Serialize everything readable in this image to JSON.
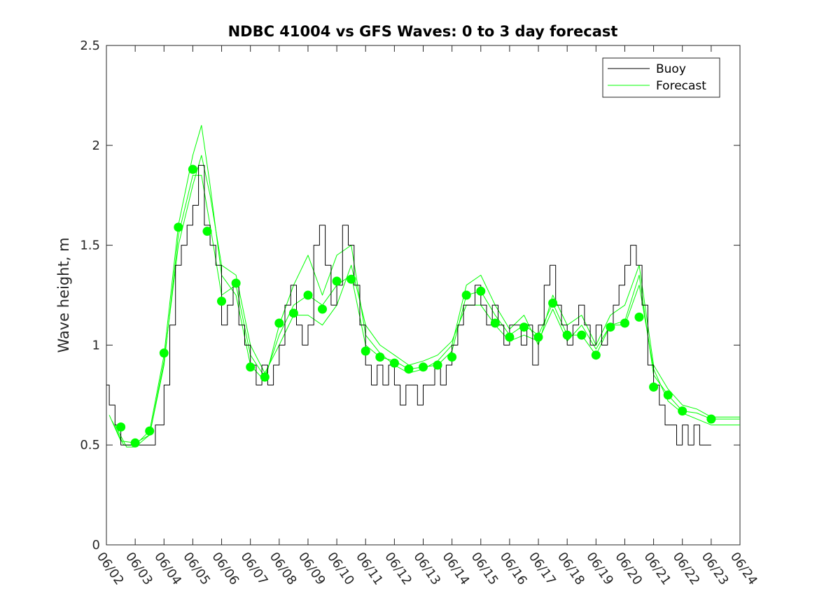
{
  "chart_data": {
    "type": "line",
    "title": "NDBC 41004 vs GFS Waves: 0 to 3 day forecast",
    "xlabel": "",
    "ylabel": "Wave height, m",
    "xlim": [
      0,
      22
    ],
    "ylim": [
      0,
      2.5
    ],
    "x_tick_labels": [
      "06/02",
      "06/03",
      "06/04",
      "06/05",
      "06/06",
      "06/07",
      "06/08",
      "06/09",
      "06/10",
      "06/11",
      "06/12",
      "06/13",
      "06/14",
      "06/15",
      "06/16",
      "06/17",
      "06/18",
      "06/19",
      "06/20",
      "06/21",
      "06/22",
      "06/23",
      "06/24"
    ],
    "y_ticks": [
      "0",
      "0.5",
      "1",
      "1.5",
      "2",
      "2.5"
    ],
    "y_tick_values": [
      0,
      0.5,
      1,
      1.5,
      2,
      2.5
    ],
    "x_units": "days since 06/02",
    "legend": {
      "position": "top-right",
      "entries": [
        "Buoy",
        "Forecast"
      ]
    },
    "grid": false,
    "colors": {
      "buoy": "#000000",
      "forecast": "#00ff00",
      "axes": "#262626"
    },
    "series": [
      {
        "name": "Buoy",
        "style": "step",
        "points": [
          [
            0,
            0.8
          ],
          [
            0.1,
            0.7
          ],
          [
            0.3,
            0.6
          ],
          [
            0.5,
            0.5
          ],
          [
            1,
            0.5
          ],
          [
            1.5,
            0.5
          ],
          [
            1.7,
            0.6
          ],
          [
            2,
            0.8
          ],
          [
            2.2,
            1.1
          ],
          [
            2.4,
            1.4
          ],
          [
            2.6,
            1.5
          ],
          [
            2.8,
            1.6
          ],
          [
            3,
            1.7
          ],
          [
            3.2,
            1.9
          ],
          [
            3.4,
            1.6
          ],
          [
            3.6,
            1.5
          ],
          [
            3.8,
            1.4
          ],
          [
            4,
            1.1
          ],
          [
            4.2,
            1.2
          ],
          [
            4.4,
            1.3
          ],
          [
            4.6,
            1.1
          ],
          [
            4.8,
            1.0
          ],
          [
            5,
            0.9
          ],
          [
            5.2,
            0.8
          ],
          [
            5.4,
            0.9
          ],
          [
            5.6,
            0.8
          ],
          [
            5.8,
            0.9
          ],
          [
            6,
            1.0
          ],
          [
            6.2,
            1.2
          ],
          [
            6.4,
            1.3
          ],
          [
            6.6,
            1.1
          ],
          [
            6.8,
            1.0
          ],
          [
            7,
            1.1
          ],
          [
            7.2,
            1.5
          ],
          [
            7.4,
            1.6
          ],
          [
            7.6,
            1.4
          ],
          [
            7.8,
            1.2
          ],
          [
            8,
            1.3
          ],
          [
            8.2,
            1.6
          ],
          [
            8.4,
            1.5
          ],
          [
            8.6,
            1.3
          ],
          [
            8.8,
            1.1
          ],
          [
            9,
            0.9
          ],
          [
            9.2,
            0.8
          ],
          [
            9.4,
            0.9
          ],
          [
            9.6,
            0.8
          ],
          [
            9.8,
            0.9
          ],
          [
            10,
            0.8
          ],
          [
            10.2,
            0.7
          ],
          [
            10.4,
            0.8
          ],
          [
            10.6,
            0.8
          ],
          [
            10.8,
            0.7
          ],
          [
            11,
            0.8
          ],
          [
            11.2,
            0.8
          ],
          [
            11.4,
            0.9
          ],
          [
            11.6,
            0.8
          ],
          [
            11.8,
            0.9
          ],
          [
            12,
            1.0
          ],
          [
            12.2,
            1.1
          ],
          [
            12.4,
            1.2
          ],
          [
            12.6,
            1.2
          ],
          [
            12.8,
            1.3
          ],
          [
            13,
            1.2
          ],
          [
            13.2,
            1.1
          ],
          [
            13.4,
            1.2
          ],
          [
            13.6,
            1.1
          ],
          [
            13.8,
            1.0
          ],
          [
            14,
            1.1
          ],
          [
            14.2,
            1.1
          ],
          [
            14.4,
            1.0
          ],
          [
            14.6,
            1.1
          ],
          [
            14.8,
            0.9
          ],
          [
            15,
            1.1
          ],
          [
            15.2,
            1.3
          ],
          [
            15.4,
            1.4
          ],
          [
            15.6,
            1.2
          ],
          [
            15.8,
            1.1
          ],
          [
            16,
            1.0
          ],
          [
            16.2,
            1.1
          ],
          [
            16.4,
            1.2
          ],
          [
            16.6,
            1.1
          ],
          [
            16.8,
            1.0
          ],
          [
            17,
            1.1
          ],
          [
            17.2,
            1.0
          ],
          [
            17.4,
            1.1
          ],
          [
            17.6,
            1.2
          ],
          [
            17.8,
            1.3
          ],
          [
            18,
            1.4
          ],
          [
            18.2,
            1.5
          ],
          [
            18.4,
            1.4
          ],
          [
            18.6,
            1.2
          ],
          [
            18.8,
            0.9
          ],
          [
            19,
            0.8
          ],
          [
            19.2,
            0.7
          ],
          [
            19.4,
            0.6
          ],
          [
            19.6,
            0.6
          ],
          [
            19.8,
            0.5
          ],
          [
            20,
            0.6
          ],
          [
            20.2,
            0.5
          ],
          [
            20.4,
            0.6
          ],
          [
            20.6,
            0.5
          ],
          [
            21,
            0.5
          ]
        ]
      },
      {
        "name": "Forecast",
        "style": "line",
        "points": [
          [
            0.1,
            0.65
          ],
          [
            0.5,
            0.52
          ],
          [
            1,
            0.51
          ],
          [
            1.5,
            0.55
          ],
          [
            2,
            0.9
          ],
          [
            2.5,
            1.55
          ],
          [
            3,
            1.85
          ],
          [
            3.3,
            1.85
          ],
          [
            3.6,
            1.6
          ],
          [
            4,
            1.25
          ],
          [
            4.5,
            1.3
          ],
          [
            5,
            0.95
          ],
          [
            5.5,
            0.84
          ],
          [
            6,
            1.05
          ],
          [
            6.5,
            1.2
          ],
          [
            7,
            1.25
          ],
          [
            7.5,
            1.2
          ],
          [
            8,
            1.3
          ],
          [
            8.5,
            1.35
          ],
          [
            9,
            1.0
          ],
          [
            9.5,
            0.94
          ],
          [
            10,
            0.92
          ],
          [
            10.5,
            0.88
          ],
          [
            11,
            0.89
          ],
          [
            11.5,
            0.9
          ],
          [
            12,
            0.97
          ],
          [
            12.5,
            1.25
          ],
          [
            13,
            1.27
          ],
          [
            13.5,
            1.15
          ],
          [
            14,
            1.05
          ],
          [
            14.5,
            1.1
          ],
          [
            15,
            1.05
          ],
          [
            15.5,
            1.21
          ],
          [
            16,
            1.05
          ],
          [
            16.5,
            1.05
          ],
          [
            17,
            0.95
          ],
          [
            17.5,
            1.1
          ],
          [
            18,
            1.12
          ],
          [
            18.5,
            1.35
          ],
          [
            19,
            0.85
          ],
          [
            19.5,
            0.75
          ],
          [
            20,
            0.67
          ],
          [
            20.5,
            0.66
          ],
          [
            21,
            0.63
          ],
          [
            22,
            0.63
          ]
        ]
      },
      {
        "name": "Forecast",
        "style": "line",
        "points": [
          [
            0.2,
            0.62
          ],
          [
            0.6,
            0.5
          ],
          [
            1,
            0.5
          ],
          [
            1.5,
            0.57
          ],
          [
            2,
            0.95
          ],
          [
            2.5,
            1.6
          ],
          [
            3,
            1.95
          ],
          [
            3.3,
            2.1
          ],
          [
            3.6,
            1.8
          ],
          [
            4,
            1.35
          ],
          [
            4.5,
            1.25
          ],
          [
            5,
            0.9
          ],
          [
            5.5,
            0.82
          ],
          [
            6,
            1.1
          ],
          [
            6.5,
            1.3
          ],
          [
            7,
            1.45
          ],
          [
            7.5,
            1.25
          ],
          [
            8,
            1.45
          ],
          [
            8.5,
            1.5
          ],
          [
            9,
            1.05
          ],
          [
            9.5,
            0.96
          ],
          [
            10,
            0.9
          ],
          [
            10.5,
            0.86
          ],
          [
            11,
            0.88
          ],
          [
            11.5,
            0.92
          ],
          [
            12,
            1.0
          ],
          [
            12.5,
            1.3
          ],
          [
            13,
            1.35
          ],
          [
            13.5,
            1.2
          ],
          [
            14,
            1.08
          ],
          [
            14.5,
            1.15
          ],
          [
            15,
            1.0
          ],
          [
            15.5,
            1.25
          ],
          [
            16,
            1.1
          ],
          [
            16.5,
            1.15
          ],
          [
            17,
            1.0
          ],
          [
            17.5,
            1.15
          ],
          [
            18,
            1.2
          ],
          [
            18.5,
            1.4
          ],
          [
            19,
            0.9
          ],
          [
            19.5,
            0.78
          ],
          [
            20,
            0.7
          ],
          [
            20.5,
            0.68
          ],
          [
            21,
            0.64
          ],
          [
            22,
            0.64
          ]
        ]
      },
      {
        "name": "Forecast",
        "style": "line",
        "points": [
          [
            0.3,
            0.6
          ],
          [
            0.7,
            0.49
          ],
          [
            1,
            0.49
          ],
          [
            1.5,
            0.55
          ],
          [
            2,
            0.92
          ],
          [
            2.5,
            1.5
          ],
          [
            3,
            1.8
          ],
          [
            3.3,
            1.95
          ],
          [
            3.6,
            1.75
          ],
          [
            4,
            1.4
          ],
          [
            4.5,
            1.35
          ],
          [
            5,
            1.0
          ],
          [
            5.5,
            0.86
          ],
          [
            6,
            1.0
          ],
          [
            6.5,
            1.15
          ],
          [
            7,
            1.15
          ],
          [
            7.5,
            1.1
          ],
          [
            8,
            1.2
          ],
          [
            8.5,
            1.4
          ],
          [
            9,
            1.1
          ],
          [
            9.5,
            1.0
          ],
          [
            10,
            0.95
          ],
          [
            10.5,
            0.9
          ],
          [
            11,
            0.92
          ],
          [
            11.5,
            0.95
          ],
          [
            12,
            1.02
          ],
          [
            12.5,
            1.2
          ],
          [
            13,
            1.2
          ],
          [
            13.5,
            1.1
          ],
          [
            14,
            1.02
          ],
          [
            14.5,
            1.05
          ],
          [
            15,
            1.02
          ],
          [
            15.5,
            1.18
          ],
          [
            16,
            1.02
          ],
          [
            16.5,
            1.1
          ],
          [
            17,
            0.98
          ],
          [
            17.5,
            1.1
          ],
          [
            18,
            1.1
          ],
          [
            18.5,
            1.3
          ],
          [
            19,
            0.88
          ],
          [
            19.5,
            0.72
          ],
          [
            20,
            0.66
          ],
          [
            20.5,
            0.63
          ],
          [
            21,
            0.6
          ],
          [
            22,
            0.6
          ]
        ]
      }
    ],
    "markers": {
      "name": "Forecast",
      "points": [
        [
          0.5,
          0.59
        ],
        [
          1,
          0.51
        ],
        [
          1.5,
          0.57
        ],
        [
          2,
          0.96
        ],
        [
          2.5,
          1.59
        ],
        [
          3,
          1.88
        ],
        [
          3.5,
          1.57
        ],
        [
          4,
          1.22
        ],
        [
          4.5,
          1.31
        ],
        [
          5,
          0.89
        ],
        [
          5.5,
          0.84
        ],
        [
          6,
          1.11
        ],
        [
          6.5,
          1.16
        ],
        [
          7,
          1.25
        ],
        [
          7.5,
          1.18
        ],
        [
          8,
          1.32
        ],
        [
          8.5,
          1.33
        ],
        [
          9,
          0.97
        ],
        [
          9.5,
          0.94
        ],
        [
          10,
          0.91
        ],
        [
          10.5,
          0.88
        ],
        [
          11,
          0.89
        ],
        [
          11.5,
          0.9
        ],
        [
          12,
          0.94
        ],
        [
          12.5,
          1.25
        ],
        [
          13,
          1.27
        ],
        [
          13.5,
          1.11
        ],
        [
          14,
          1.04
        ],
        [
          14.5,
          1.09
        ],
        [
          15,
          1.04
        ],
        [
          15.5,
          1.21
        ],
        [
          16,
          1.05
        ],
        [
          16.5,
          1.05
        ],
        [
          17,
          0.95
        ],
        [
          17.5,
          1.09
        ],
        [
          18,
          1.11
        ],
        [
          18.5,
          1.14
        ],
        [
          19,
          0.79
        ],
        [
          19.5,
          0.75
        ],
        [
          20,
          0.67
        ],
        [
          21,
          0.63
        ]
      ]
    }
  }
}
